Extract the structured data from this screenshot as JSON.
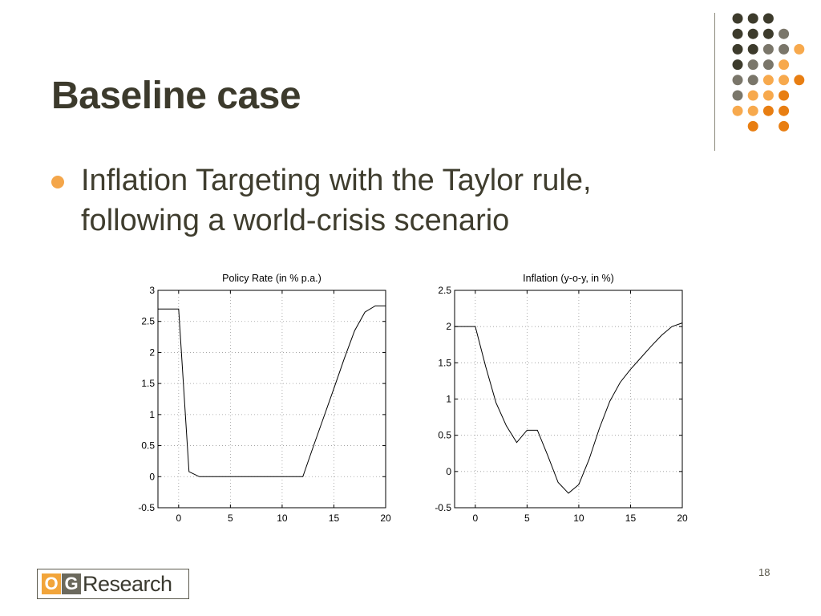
{
  "slide": {
    "title": "Baseline case",
    "bullet": "Inflation Targeting with the Taylor rule, following a world-crisis scenario",
    "page_number": "18"
  },
  "logo": {
    "o_letter": "O",
    "g_letter": "G",
    "text": "Research"
  },
  "colors": {
    "title": "#3c3a2c",
    "bullet": "#f4a64a",
    "dark": "#3d3b2c",
    "gray": "#7a766a",
    "light_orange": "#f7a94d",
    "orange": "#e87e12"
  },
  "decoration": {
    "dot_grid": [
      [
        "dark",
        "dark",
        "dark",
        null,
        null
      ],
      [
        "dark",
        "dark",
        "dark",
        "gray",
        null
      ],
      [
        "dark",
        "dark",
        "gray",
        "gray",
        "light_orange"
      ],
      [
        "dark",
        "gray",
        "gray",
        "light_orange",
        null
      ],
      [
        "gray",
        "gray",
        "light_orange",
        "light_orange",
        "orange"
      ],
      [
        "gray",
        "light_orange",
        "light_orange",
        "orange",
        null
      ],
      [
        "light_orange",
        "light_orange",
        "orange",
        "orange",
        null
      ],
      [
        null,
        "orange",
        null,
        "orange",
        null
      ]
    ]
  },
  "chart_data": [
    {
      "type": "line",
      "title": "Policy Rate (in % p.a.)",
      "xlabel": "",
      "ylabel": "",
      "xlim": [
        -2,
        20
      ],
      "ylim": [
        -0.5,
        3
      ],
      "xticks": [
        0,
        5,
        10,
        15,
        20
      ],
      "xtick_labels": [
        "0",
        "5",
        "10",
        "15",
        "20"
      ],
      "yticks": [
        -0.5,
        0,
        0.5,
        1,
        1.5,
        2,
        2.5,
        3
      ],
      "ytick_labels": [
        "-0.5",
        "0",
        "0.5",
        "1",
        "1.5",
        "2",
        "2.5",
        "3"
      ],
      "grid": true,
      "series": [
        {
          "x": [
            -2,
            0,
            1,
            2,
            3,
            4,
            5,
            6,
            7,
            8,
            9,
            10,
            11,
            12,
            13,
            14,
            15,
            16,
            17,
            18,
            19,
            20
          ],
          "values": [
            2.7,
            2.7,
            0.08,
            0.0,
            0.0,
            0.0,
            0.0,
            0.0,
            0.0,
            0.0,
            0.0,
            0.0,
            0.0,
            0.0,
            0.48,
            0.95,
            1.42,
            1.9,
            2.35,
            2.65,
            2.75,
            2.75
          ]
        }
      ]
    },
    {
      "type": "line",
      "title": "Inflation (y-o-y, in %)",
      "xlabel": "",
      "ylabel": "",
      "xlim": [
        -2,
        20
      ],
      "ylim": [
        -0.5,
        2.5
      ],
      "xticks": [
        0,
        5,
        10,
        15,
        20
      ],
      "xtick_labels": [
        "0",
        "5",
        "10",
        "15",
        "20"
      ],
      "yticks": [
        -0.5,
        0,
        0.5,
        1,
        1.5,
        2,
        2.5
      ],
      "ytick_labels": [
        "-0.5",
        "0",
        "0.5",
        "1",
        "1.5",
        "2",
        "2.5"
      ],
      "grid": true,
      "series": [
        {
          "x": [
            -2,
            0,
            1,
            2,
            3,
            4,
            5,
            6,
            7,
            8,
            9,
            10,
            11,
            12,
            13,
            14,
            15,
            16,
            17,
            18,
            19,
            20
          ],
          "values": [
            2.0,
            2.0,
            1.45,
            0.95,
            0.63,
            0.4,
            0.57,
            0.57,
            0.22,
            -0.15,
            -0.3,
            -0.18,
            0.17,
            0.6,
            0.97,
            1.23,
            1.41,
            1.57,
            1.73,
            1.88,
            2.0,
            2.05
          ]
        }
      ]
    }
  ]
}
